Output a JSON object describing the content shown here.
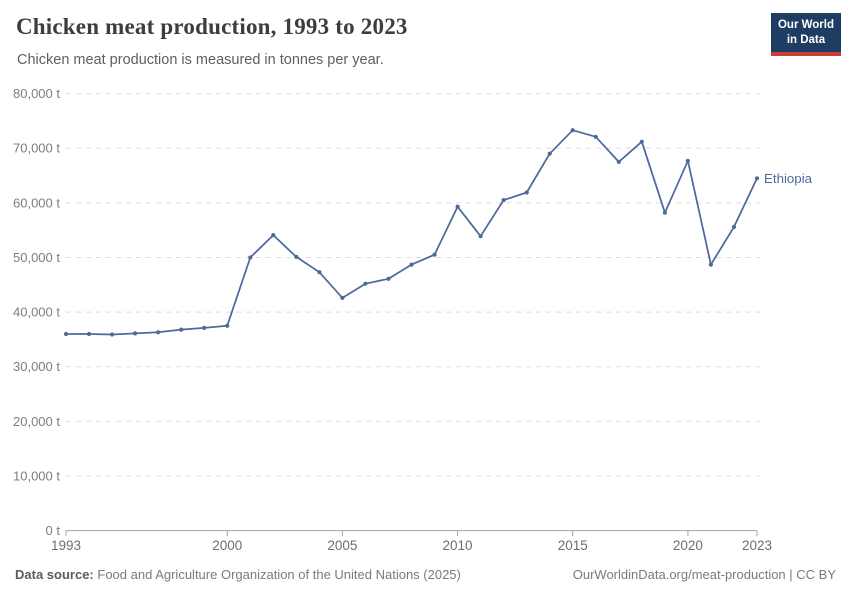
{
  "header": {
    "title": "Chicken meat production, 1993 to 2023",
    "subtitle": "Chicken meat production is measured in tonnes per year.",
    "logo": {
      "line1": "Our World",
      "line2": "in Data"
    }
  },
  "footer": {
    "source_label": "Data source:",
    "source_text": "Food and Agriculture Organization of the United Nations (2025)",
    "attribution": "OurWorldinData.org/meat-production | CC BY"
  },
  "colors": {
    "line": "#4c6a9c",
    "grid": "#dedede",
    "axis": "#a5a5a5",
    "ytick_label": "#7d7d7d",
    "xtick_label": "#6e6e6e",
    "logo_navy": "#1d3d63",
    "logo_red": "#cc3e36"
  },
  "chart_data": {
    "type": "line",
    "title": "Chicken meat production, 1993 to 2023",
    "subtitle": "Chicken meat production is measured in tonnes per year.",
    "unit": "t",
    "xlim": [
      1993,
      2023
    ],
    "ylim": [
      0,
      80000
    ],
    "grid": "horizontal-dashed",
    "legend_position": "line-end-label",
    "xticks": [
      1993,
      2000,
      2005,
      2010,
      2015,
      2020,
      2023
    ],
    "xtick_labels": [
      "1993",
      "2000",
      "2005",
      "2010",
      "2015",
      "2020",
      "2023"
    ],
    "yticks": [
      0,
      10000,
      20000,
      30000,
      40000,
      50000,
      60000,
      70000,
      80000
    ],
    "ytick_labels": [
      "0 t",
      "10,000 t",
      "20,000 t",
      "30,000 t",
      "40,000 t",
      "50,000 t",
      "60,000 t",
      "70,000 t",
      "80,000 t"
    ],
    "series": [
      {
        "name": "Ethiopia",
        "color": "#4c6a9c",
        "x": [
          1993,
          1994,
          1995,
          1996,
          1997,
          1998,
          1999,
          2000,
          2001,
          2002,
          2003,
          2004,
          2005,
          2006,
          2007,
          2008,
          2009,
          2010,
          2011,
          2012,
          2013,
          2014,
          2015,
          2016,
          2017,
          2018,
          2019,
          2020,
          2021,
          2022,
          2023
        ],
        "values": [
          36000,
          36000,
          35900,
          36100,
          36300,
          36800,
          37100,
          37500,
          50000,
          54100,
          50100,
          47300,
          42600,
          45200,
          46100,
          48700,
          50500,
          59300,
          53900,
          60500,
          61900,
          69000,
          73300,
          72100,
          67500,
          71200,
          58200,
          67700,
          48700,
          55600,
          64500
        ]
      }
    ]
  }
}
